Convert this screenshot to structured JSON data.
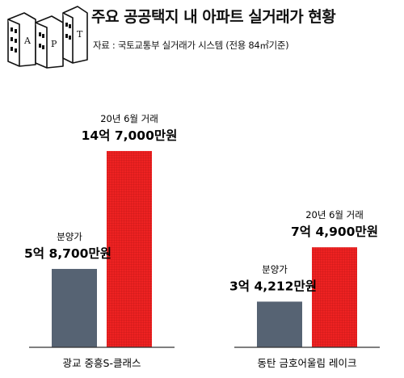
{
  "header": {
    "title": "주요 공공택지 내 아파트 실거래가 현황",
    "source": "자료 : 국토교통부 실거래가 시스템 (전용 84㎡기준)"
  },
  "logo": {
    "letters": [
      "A",
      "P",
      "T"
    ],
    "icon": "apartment-building-icon"
  },
  "colors": {
    "presale": "#566373",
    "trade": "#ee2222",
    "axis": "#333333"
  },
  "chart_data": {
    "type": "bar",
    "categories": [
      "광교 중흥S-클래스",
      "동탄 금호어울림 레이크"
    ],
    "units": "만원",
    "series": [
      {
        "name": "분양가",
        "values": [
          58700,
          34212
        ],
        "labels": [
          "5억 8,700만원",
          "3억 4,212만원"
        ],
        "caption": "분양가"
      },
      {
        "name": "20년 6월 거래",
        "values": [
          147000,
          74900
        ],
        "labels": [
          "14억 7,000만원",
          "7억 4,900만원"
        ],
        "caption": "20년 6월 거래"
      }
    ],
    "ylim": [
      0,
      150000
    ],
    "grid": false,
    "legend": "none"
  }
}
